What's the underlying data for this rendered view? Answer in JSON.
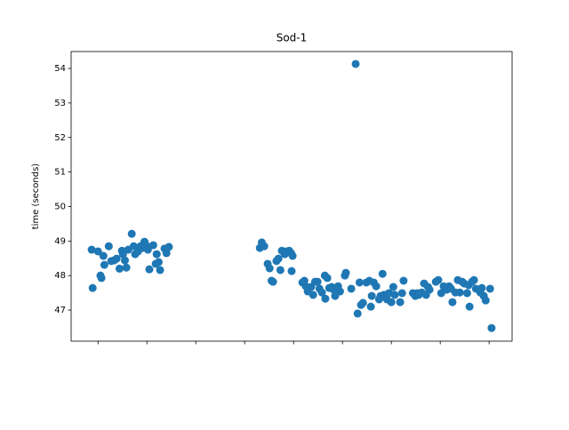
{
  "chart_data": {
    "type": "scatter",
    "title": "Sod-1",
    "y_label": "time (seconds)",
    "series": [
      {
        "color": "#1f77b4",
        "x": [
          -1.3,
          -1.1,
          0,
          0.5,
          0.7,
          1.1,
          1.3,
          2.2,
          2.7,
          3.3,
          3.8,
          4.4,
          4.9,
          5.1,
          5.5,
          5.8,
          6.2,
          6.9,
          7.3,
          7.6,
          8.2,
          8.7,
          9.1,
          9.5,
          9.8,
          10.2,
          10.5,
          11.3,
          11.8,
          12,
          12.4,
          12.7,
          13.6,
          14,
          14.5,
          33.1,
          33.5,
          34,
          34.7,
          35.1,
          35.5,
          35.8,
          36.5,
          36.9,
          37.3,
          37.6,
          38.2,
          38.5,
          39.1,
          39.5,
          39.8,
          39.6,
          41.8,
          42.2,
          42.5,
          42.9,
          43.6,
          44,
          44.4,
          44.9,
          45.3,
          45.8,
          46.4,
          46.5,
          46.9,
          47.3,
          47.8,
          48.2,
          48.5,
          49.1,
          49.5,
          50.5,
          50.7,
          51.8,
          52.7,
          53.1,
          53.5,
          53.8,
          54.2,
          54.9,
          55.5,
          55.8,
          56,
          56.4,
          56.9,
          57.5,
          57.8,
          58.2,
          58.5,
          59.1,
          59.5,
          60,
          60.4,
          60.7,
          61.8,
          62.2,
          62.5,
          64.4,
          64.9,
          65.3,
          65.6,
          66.2,
          66.7,
          67.1,
          67.5,
          67.8,
          69.1,
          69.6,
          70.2,
          70.7,
          71.3,
          71.8,
          72.2,
          72.5,
          73.1,
          73.6,
          74,
          74.5,
          74.9,
          75.5,
          75.8,
          76,
          76.5,
          76.9,
          77.3,
          78.2,
          78.5,
          78.9,
          79.3,
          80.2,
          80.5
        ],
        "values": [
          48.75,
          47.64,
          48.7,
          48.0,
          47.93,
          48.57,
          48.31,
          48.85,
          48.42,
          48.44,
          48.49,
          48.2,
          48.72,
          48.62,
          48.44,
          48.23,
          48.75,
          49.21,
          48.85,
          48.62,
          48.7,
          48.85,
          48.8,
          48.98,
          48.88,
          48.75,
          48.18,
          48.88,
          48.34,
          48.62,
          48.39,
          48.16,
          48.78,
          48.65,
          48.83,
          48.8,
          48.96,
          48.85,
          48.34,
          48.21,
          47.85,
          47.82,
          48.42,
          48.49,
          48.16,
          48.72,
          48.62,
          48.7,
          48.72,
          48.65,
          48.57,
          48.13,
          47.8,
          47.85,
          47.69,
          47.54,
          47.67,
          47.44,
          47.82,
          47.82,
          47.62,
          47.51,
          48.0,
          47.33,
          47.93,
          47.64,
          47.67,
          47.59,
          47.41,
          47.69,
          47.54,
          48.0,
          48.08,
          47.62,
          54.13,
          46.9,
          47.8,
          47.15,
          47.21,
          47.8,
          47.85,
          47.1,
          47.41,
          47.8,
          47.69,
          47.31,
          47.41,
          48.05,
          47.44,
          47.31,
          47.49,
          47.23,
          47.67,
          47.44,
          47.23,
          47.49,
          47.85,
          47.49,
          47.41,
          47.49,
          47.44,
          47.51,
          47.77,
          47.44,
          47.67,
          47.59,
          47.82,
          47.87,
          47.49,
          47.69,
          47.59,
          47.69,
          47.62,
          47.23,
          47.51,
          47.87,
          47.51,
          47.82,
          47.77,
          47.49,
          47.72,
          47.1,
          47.82,
          47.87,
          47.62,
          47.51,
          47.64,
          47.41,
          47.28,
          47.62,
          46.48
        ]
      }
    ],
    "xlim": [
      -5.5,
      84.7
    ],
    "xticks": [
      0,
      10,
      20,
      30,
      40,
      50,
      60,
      70,
      80
    ],
    "ylim": [
      46.1,
      54.49
    ],
    "yticks": [
      47,
      48,
      49,
      50,
      51,
      52,
      53,
      54
    ]
  }
}
